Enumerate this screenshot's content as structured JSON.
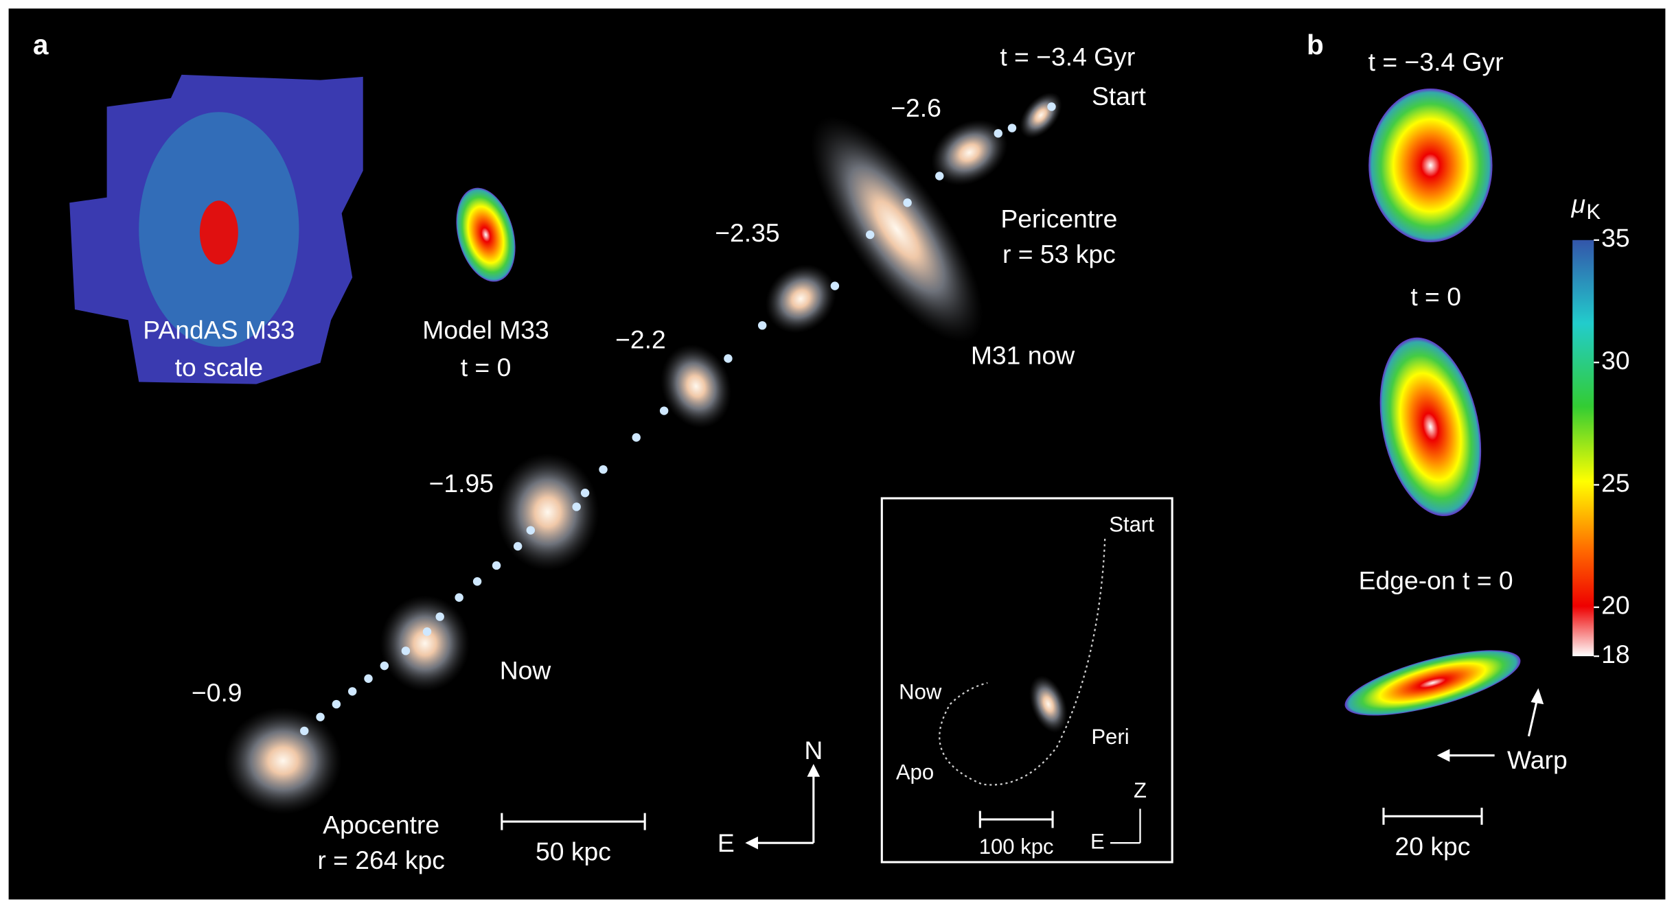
{
  "panel_a": {
    "label": "a",
    "labels": [
      "t = −3.4 Gyr",
      "Start",
      "−2.6",
      "Pericentre",
      "r = 53 kpc",
      "−2.35",
      "M31 now",
      "−2.2",
      "PAndAS M33",
      "to scale",
      "Model M33",
      "t = 0",
      "−1.95",
      "Now",
      "−0.9",
      "Apocentre",
      "r = 264 kpc"
    ],
    "scale_bar": "50 kpc",
    "compass": {
      "north": "N",
      "east": "E"
    },
    "inset": {
      "labels": [
        "Start",
        "Now",
        "Peri",
        "Apo"
      ],
      "scale_bar": "100 kpc",
      "compass": {
        "up": "Z",
        "east": "E"
      }
    }
  },
  "panel_b": {
    "label": "b",
    "labels": [
      "t = −3.4 Gyr",
      "t = 0",
      "Edge-on t = 0"
    ],
    "annotation": "Warp",
    "scale_bar": "20 kpc",
    "colorbar": {
      "label": "μ",
      "subscript": "K",
      "ticks": [
        35,
        30,
        25,
        20,
        18
      ]
    }
  }
}
